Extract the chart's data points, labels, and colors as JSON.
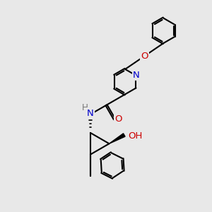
{
  "bg": "#e8e8e8",
  "bond_color": "#000000",
  "N_color": "#0000cc",
  "O_color": "#cc0000",
  "H_color": "#777777",
  "lw": 1.5,
  "fs": 9.5,
  "xlim": [
    -2.5,
    5.0
  ],
  "ylim": [
    -4.5,
    3.8
  ]
}
